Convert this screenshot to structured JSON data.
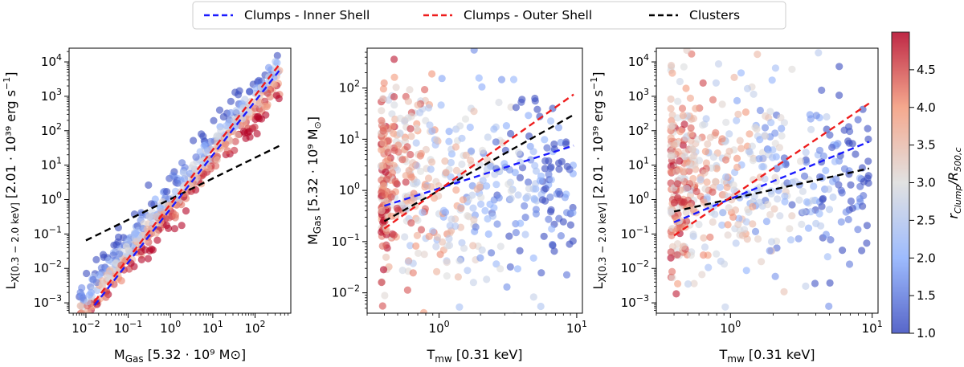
{
  "legend": [
    {
      "label": "Clumps - Inner Shell",
      "color": "#1a1aff"
    },
    {
      "label": "Clumps - Outer Shell",
      "color": "#ee1c1c"
    },
    {
      "label": "Clusters",
      "color": "#000000"
    }
  ],
  "colorbar": {
    "label": "r_Clump/R_500,c",
    "label_main": "r",
    "label_sub1": "Clump",
    "label_mid": "/R",
    "label_sub2": "500,c",
    "min": 1.0,
    "max": 5.0,
    "ticks": [
      "1.0",
      "1.5",
      "2.0",
      "2.5",
      "3.0",
      "3.5",
      "4.0",
      "4.5"
    ],
    "colormap": "coolwarm"
  },
  "chart_data": [
    {
      "type": "scatter",
      "xscale": "log",
      "yscale": "log",
      "xlim": [
        0.004,
        700
      ],
      "ylim": [
        0.0005,
        25000
      ],
      "xlabel": "M_Gas [5.32·10^9 M_⊙]",
      "xlabel_main": "M",
      "xlabel_sub": "Gas",
      "xlabel_rest": " [5.32 · 10⁹ M",
      "xlabel_tail": "]",
      "ylabel": "L_X[0.3-2.0 keV] [2.01·10^39 erg s^-1]",
      "ylabel_main": "L",
      "ylabel_sub": "X[0.3 − 2.0 keV]",
      "ylabel_rest": " [2.01 · 10³⁹ erg s",
      "ylabel_tail": "]",
      "xticks": [
        {
          "v": 0.01,
          "b": "10",
          "e": "−2"
        },
        {
          "v": 0.1,
          "b": "10",
          "e": "−1"
        },
        {
          "v": 1,
          "b": "10",
          "e": "0"
        },
        {
          "v": 10,
          "b": "10",
          "e": "1"
        },
        {
          "v": 100,
          "b": "10",
          "e": "2"
        }
      ],
      "yticks": [
        {
          "v": 0.001,
          "b": "10",
          "e": "−3"
        },
        {
          "v": 0.01,
          "b": "10",
          "e": "−2"
        },
        {
          "v": 0.1,
          "b": "10",
          "e": "−1"
        },
        {
          "v": 1,
          "b": "10",
          "e": "0"
        },
        {
          "v": 10,
          "b": "10",
          "e": "1"
        },
        {
          "v": 100,
          "b": "10",
          "e": "2"
        },
        {
          "v": 1000,
          "b": "10",
          "e": "3"
        },
        {
          "v": 10000,
          "b": "10",
          "e": "4"
        }
      ],
      "points": {
        "xrange": [
          0.007,
          380
        ],
        "relation": "power-law",
        "slope": 1.45,
        "norm": 0.9,
        "scatter_dex": 0.35,
        "count": 560
      },
      "fits": [
        {
          "series": "Clumps - Inner Shell",
          "x": [
            0.016,
            370
          ],
          "y": [
            0.00085,
            5500
          ]
        },
        {
          "series": "Clumps - Outer Shell",
          "x": [
            0.016,
            370
          ],
          "y": [
            0.0011,
            8200
          ]
        },
        {
          "series": "Clusters",
          "x": [
            0.01,
            370
          ],
          "y": [
            0.065,
            36
          ]
        }
      ]
    },
    {
      "type": "scatter",
      "xscale": "log",
      "yscale": "log",
      "xlim": [
        0.3,
        11
      ],
      "ylim": [
        0.004,
        600
      ],
      "xlabel": "T_mw [0.31 keV]",
      "xlabel_main": "T",
      "xlabel_sub": "mw",
      "xlabel_rest": " [0.31 keV]",
      "xlabel_tail": "",
      "ylabel": "M_Gas [5.32·10^9 M_⊙]",
      "ylabel_main": "M",
      "ylabel_sub": "Gas",
      "ylabel_rest": " [5.32 · 10⁹ M",
      "ylabel_tail": "]",
      "xticks": [
        {
          "v": 1,
          "b": "10",
          "e": "0"
        },
        {
          "v": 10,
          "b": "10",
          "e": "1"
        }
      ],
      "yticks": [
        {
          "v": 0.01,
          "b": "10",
          "e": "−2"
        },
        {
          "v": 0.1,
          "b": "10",
          "e": "−1"
        },
        {
          "v": 1,
          "b": "10",
          "e": "0"
        },
        {
          "v": 10,
          "b": "10",
          "e": "1"
        },
        {
          "v": 100,
          "b": "10",
          "e": "2"
        }
      ],
      "points": {
        "xrange": [
          0.38,
          9.5
        ],
        "yrange": [
          0.006,
          400
        ],
        "count": 560
      },
      "fits": [
        {
          "series": "Clumps - Inner Shell",
          "x": [
            0.4,
            9.5
          ],
          "y": [
            0.5,
            7.5
          ]
        },
        {
          "series": "Clumps - Outer Shell",
          "x": [
            0.4,
            9.5
          ],
          "y": [
            0.18,
            75
          ]
        },
        {
          "series": "Clusters",
          "x": [
            0.4,
            9.5
          ],
          "y": [
            0.25,
            30
          ]
        }
      ]
    },
    {
      "type": "scatter",
      "xscale": "log",
      "yscale": "log",
      "xlim": [
        0.3,
        11
      ],
      "ylim": [
        0.0005,
        25000
      ],
      "xlabel": "T_mw [0.31 keV]",
      "xlabel_main": "T",
      "xlabel_sub": "mw",
      "xlabel_rest": " [0.31 keV]",
      "xlabel_tail": "",
      "ylabel": "L_X[0.3-2.0 keV] [2.01·10^39 erg s^-1]",
      "ylabel_main": "L",
      "ylabel_sub": "X[0.3 − 2.0 keV]",
      "ylabel_rest": " [2.01 · 10³⁹ erg s",
      "ylabel_tail": "]",
      "xticks": [
        {
          "v": 1,
          "b": "10",
          "e": "0"
        },
        {
          "v": 10,
          "b": "10",
          "e": "1"
        }
      ],
      "yticks": [
        {
          "v": 0.001,
          "b": "10",
          "e": "−3"
        },
        {
          "v": 0.01,
          "b": "10",
          "e": "−2"
        },
        {
          "v": 0.1,
          "b": "10",
          "e": "−1"
        },
        {
          "v": 1,
          "b": "10",
          "e": "0"
        },
        {
          "v": 10,
          "b": "10",
          "e": "1"
        },
        {
          "v": 100,
          "b": "10",
          "e": "2"
        },
        {
          "v": 1000,
          "b": "10",
          "e": "3"
        },
        {
          "v": 10000,
          "b": "10",
          "e": "4"
        }
      ],
      "points": {
        "xrange": [
          0.38,
          9.5
        ],
        "yrange": [
          0.001,
          10000
        ],
        "count": 560
      },
      "fits": [
        {
          "series": "Clumps - Inner Shell",
          "x": [
            0.4,
            9.5
          ],
          "y": [
            0.22,
            48
          ]
        },
        {
          "series": "Clumps - Outer Shell",
          "x": [
            0.4,
            9.5
          ],
          "y": [
            0.09,
            620
          ]
        },
        {
          "series": "Clusters",
          "x": [
            0.4,
            9.5
          ],
          "y": [
            0.45,
            8
          ]
        }
      ]
    }
  ]
}
